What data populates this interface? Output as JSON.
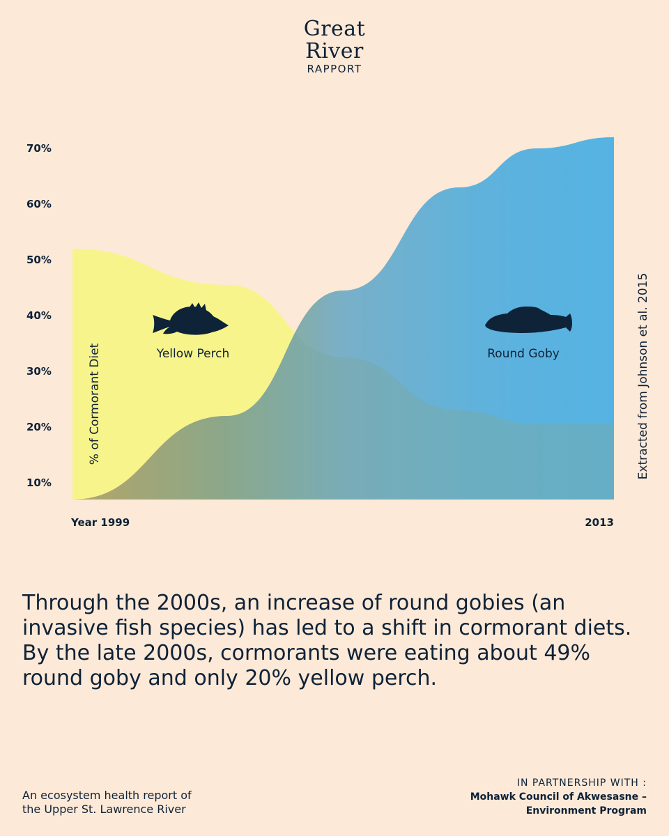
{
  "logo": {
    "line1": "Great",
    "line2": "River",
    "line3": "RAPPORT"
  },
  "chart_data": {
    "type": "area",
    "title": "",
    "ylabel": "% of Cormorant Diet",
    "source": "Extracted from Johnson et al. 2015",
    "x_labels": {
      "start": "Year 1999",
      "end": "2013"
    },
    "xlim": [
      1999,
      2013
    ],
    "ylim": [
      5,
      73
    ],
    "yticks": [
      10,
      20,
      30,
      40,
      50,
      60,
      70
    ],
    "ytick_labels": [
      "10%",
      "20%",
      "30%",
      "40%",
      "50%",
      "60%",
      "70%"
    ],
    "series": [
      {
        "name": "Yellow Perch",
        "color": "#f8f48c",
        "x": [
          1999,
          2003,
          2006,
          2009,
          2011,
          2013
        ],
        "values": [
          52,
          45.5,
          32.5,
          23,
          20.5,
          20.5
        ]
      },
      {
        "name": "Round Goby",
        "color": "#5ab4e2",
        "x": [
          1999,
          2003,
          2006,
          2009,
          2011,
          2013
        ],
        "values": [
          7,
          22,
          44.5,
          63,
          70,
          72
        ]
      }
    ],
    "overlap_color": "#7aa8a2",
    "label_color": "#0e2238"
  },
  "caption": "Through the 2000s, an increase of round gobies (an invasive fish species) has led to a shift in cormorant diets. By the late 2000s, cormorants were eating about 49% round goby and only 20% yellow perch.",
  "footer": {
    "left_line1": "An ecosystem health report of",
    "left_line2": "the Upper St. Lawrence River",
    "right_line1": "IN PARTNERSHIP WITH :",
    "right_line2": "Mohawk Council of Akwesasne –",
    "right_line3": "Environment Program"
  }
}
